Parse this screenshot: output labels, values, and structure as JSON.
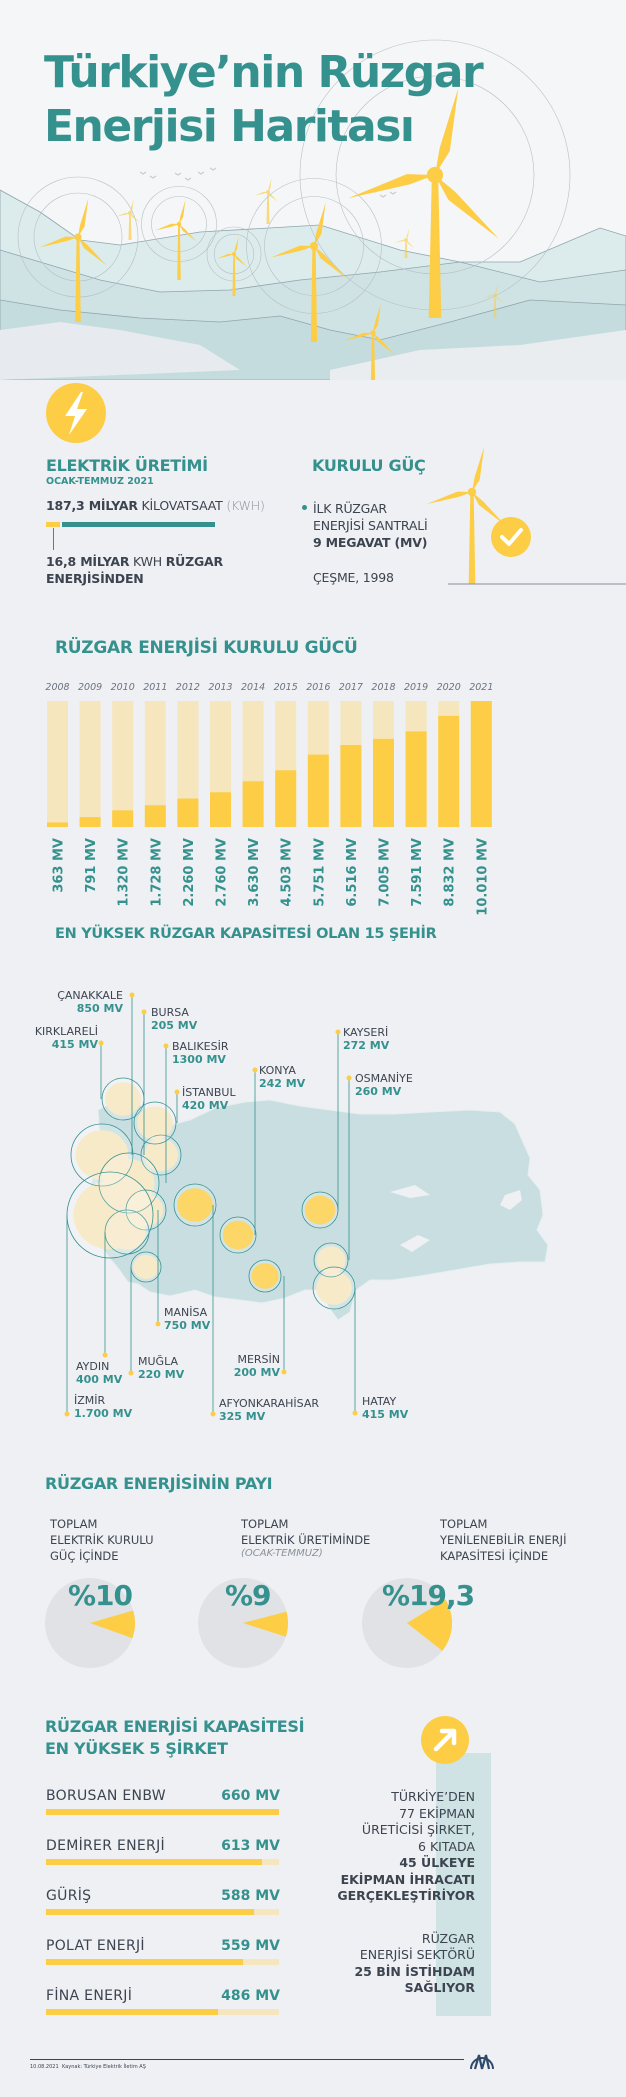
{
  "title": {
    "line1": "Türkiye’nin Rüzgar",
    "line2": "Enerjisi Haritası"
  },
  "colors": {
    "teal": "#35918e",
    "yellow": "#fccd45",
    "light_yellow": "#f6e6bd",
    "background": "#eef0f3",
    "map": "#c9dee1"
  },
  "electricity": {
    "icon": "lightning-icon",
    "title": "ELEKTRİK ÜRETİMİ",
    "period": "OCAK-TEMMUZ 2021",
    "total_bold": "187,3 MİLYAR",
    "total_unit": "KİLOVATSAAT",
    "total_paren": "(KWH)",
    "wind_bold": "16,8 MİLYAR",
    "wind_mid": "KWH",
    "wind_bold2": "RÜZGAR",
    "wind_line2": "ENERJİSİNDEN",
    "total_value": 187.3,
    "wind_value": 16.8
  },
  "installed": {
    "title": "KURULU GÜÇ",
    "line1": "İLK RÜZGAR",
    "line2": "ENERJİSİ SANTRALİ",
    "line3": "9 MEGAVAT (MV)",
    "place": "ÇEŞME, 1998",
    "icon": "check-icon"
  },
  "chart_section_title": "RÜZGAR ENERJİSİ KURULU GÜCÜ",
  "map": {
    "title": "EN YÜKSEK RÜZGAR KAPASİTESİ OLAN 15 ŞEHİR",
    "cities": [
      {
        "name": "ÇANAKKALE",
        "value": "850 MV"
      },
      {
        "name": "BURSA",
        "value": "205 MV"
      },
      {
        "name": "KIRKLARELİ",
        "value": "415 MV"
      },
      {
        "name": "BALIKESİR",
        "value": "1300 MV"
      },
      {
        "name": "İSTANBUL",
        "value": "420 MV"
      },
      {
        "name": "KONYA",
        "value": "242 MV"
      },
      {
        "name": "KAYSERİ",
        "value": "272 MV"
      },
      {
        "name": "OSMANİYE",
        "value": "260 MV"
      },
      {
        "name": "MANİSA",
        "value": "750 MV"
      },
      {
        "name": "AYDIN",
        "value": "400 MV"
      },
      {
        "name": "MUĞLA",
        "value": "220 MV"
      },
      {
        "name": "MERSİN",
        "value": "200 MV"
      },
      {
        "name": "İZMİR",
        "value": "1.700 MV"
      },
      {
        "name": "AFYONKARAHİSAR",
        "value": "325 MV"
      },
      {
        "name": "HATAY",
        "value": "415 MV"
      }
    ]
  },
  "share_title": "RÜZGAR ENERJİSİNİN PAYI",
  "companies_title": {
    "line1": "RÜZGAR ENERJİSİ KAPASİTESİ",
    "line2": "EN YÜKSEK 5 ŞİRKET"
  },
  "chart_data": [
    {
      "type": "bar",
      "title": "RÜZGAR ENERJİSİ KURULU GÜCÜ",
      "categories": [
        "2008",
        "2009",
        "2010",
        "2011",
        "2012",
        "2013",
        "2014",
        "2015",
        "2016",
        "2017",
        "2018",
        "2019",
        "2020",
        "2021"
      ],
      "values": [
        363,
        791,
        1320,
        1728,
        2260,
        2760,
        3630,
        4503,
        5751,
        6516,
        7005,
        7591,
        8832,
        10010
      ],
      "value_labels": [
        "363 MV",
        "791 MV",
        "1.320 MV",
        "1.728 MV",
        "2.260 MV",
        "2.760 MV",
        "3.630 MV",
        "4.503 MV",
        "5.751 MV",
        "6.516 MV",
        "7.005 MV",
        "7.591 MV",
        "8.832 MV",
        "10.010 MV"
      ],
      "unit": "MV",
      "ylim": [
        0,
        10010
      ],
      "grid": false
    },
    {
      "type": "pie",
      "label_lines": [
        "TOPLAM",
        "ELEKTRİK KURULU",
        "GÜÇ İÇİNDE"
      ],
      "sub": "",
      "value": 10,
      "value_label": "%10"
    },
    {
      "type": "pie",
      "label_lines": [
        "TOPLAM",
        "ELEKTRİK ÜRETİMİNDE"
      ],
      "sub": "(OCAK-TEMMUZ)",
      "value": 9,
      "value_label": "%9"
    },
    {
      "type": "pie",
      "label_lines": [
        "TOPLAM",
        "YENİLENEBİLİR ENERJİ",
        "KAPASİTESİ İÇİNDE"
      ],
      "sub": "",
      "value": 19.3,
      "value_label": "%19,3"
    },
    {
      "type": "bar",
      "title": "RÜZGAR ENERJİSİ KAPASİTESİ EN YÜKSEK 5 ŞİRKET",
      "categories": [
        "BORUSAN ENBW",
        "DEMİRER ENERJİ",
        "GÜRİŞ",
        "POLAT ENERJİ",
        "FİNA ENERJİ"
      ],
      "values": [
        660,
        613,
        588,
        559,
        486
      ],
      "value_labels": [
        "660 MV",
        "613 MV",
        "588 MV",
        "559 MV",
        "486 MV"
      ],
      "orientation": "horizontal",
      "xlim": [
        0,
        660
      ]
    }
  ],
  "side_panel": {
    "icon": "arrow-up-right-icon",
    "block1": [
      {
        "text": "TÜRKİYE’DEN",
        "bold": false
      },
      {
        "text": "77 EKİPMAN",
        "bold": false
      },
      {
        "text": "ÜRETİCİSİ ŞİRKET,",
        "bold": false
      },
      {
        "text": "6 KITADA",
        "bold": false
      },
      {
        "text": "45 ÜLKEYE",
        "bold": true
      },
      {
        "text": "EKİPMAN İHRACATI",
        "bold": true
      },
      {
        "text": "GERÇEKLEŞTİRİYOR",
        "bold": true
      }
    ],
    "block2": [
      {
        "text": "RÜZGAR",
        "bold": false
      },
      {
        "text": "ENERJİSİ SEKTÖRÜ",
        "bold": false
      },
      {
        "text": "25 BİN İSTİHDAM",
        "bold": true
      },
      {
        "text": "SAĞLIYOR",
        "bold": true
      }
    ]
  },
  "footer": {
    "date": "10.08.2021",
    "source": "Kaynak: Türkiye Elektrik İletim AŞ",
    "logo_text": "ANADOLU AJANSI"
  }
}
